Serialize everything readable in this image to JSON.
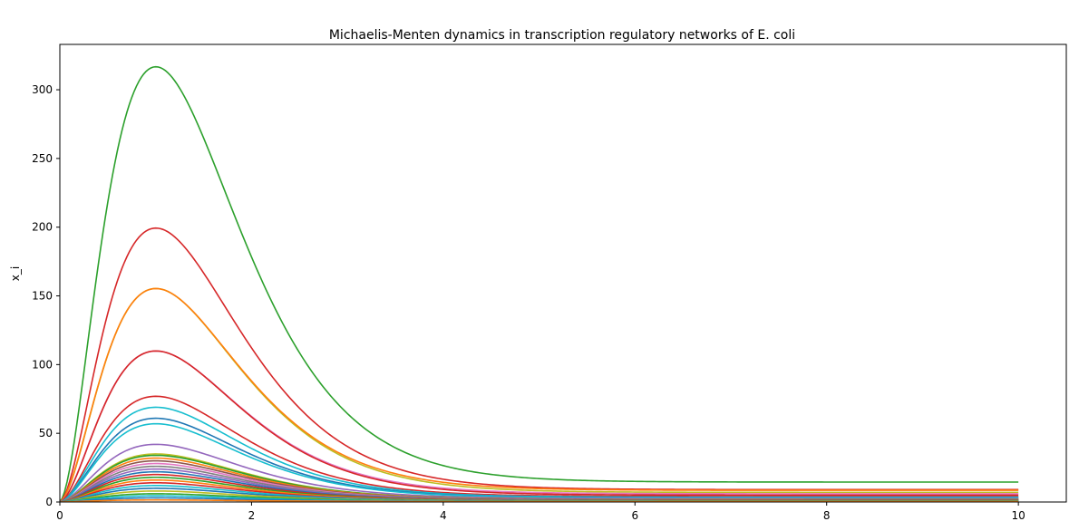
{
  "chart_data": {
    "type": "line",
    "title": "Michaelis-Menten dynamics in transcription regulatory networks of E. coli",
    "xlabel": "",
    "ylabel": "x_i",
    "xlim": [
      0,
      10.5
    ],
    "ylim": [
      0,
      333
    ],
    "xticks": [
      0,
      2,
      4,
      6,
      8,
      10
    ],
    "yticks": [
      0,
      50,
      100,
      150,
      200,
      250,
      300
    ],
    "grid": false,
    "legend": "none",
    "series": [
      {
        "peak": 317,
        "end": 14.5,
        "color": "#2ca02c"
      },
      {
        "peak": 199.5,
        "end": 9.0,
        "color": "#d62728"
      },
      {
        "peak": 155.5,
        "end": 7.0,
        "color": "#bcbd22"
      },
      {
        "peak": 155.5,
        "end": 8.5,
        "color": "#ff7f0e"
      },
      {
        "peak": 110,
        "end": 6.0,
        "color": "#e377c2"
      },
      {
        "peak": 110,
        "end": 5.0,
        "color": "#d62728"
      },
      {
        "peak": 77,
        "end": 4.0,
        "color": "#d62728"
      },
      {
        "peak": 69,
        "end": 3.5,
        "color": "#17becf"
      },
      {
        "peak": 61,
        "end": 3.2,
        "color": "#1f77b4"
      },
      {
        "peak": 57,
        "end": 3.0,
        "color": "#17becf"
      },
      {
        "peak": 42,
        "end": 2.5,
        "color": "#9467bd"
      },
      {
        "peak": 35,
        "end": 2.0,
        "color": "#bcbd22"
      },
      {
        "peak": 34,
        "end": 2.0,
        "color": "#2ca02c"
      },
      {
        "peak": 32,
        "end": 1.9,
        "color": "#ff7f0e"
      },
      {
        "peak": 30,
        "end": 1.8,
        "color": "#8c564b"
      },
      {
        "peak": 28,
        "end": 1.7,
        "color": "#e377c2"
      },
      {
        "peak": 26,
        "end": 1.6,
        "color": "#7f7f7f"
      },
      {
        "peak": 24,
        "end": 1.5,
        "color": "#9467bd"
      },
      {
        "peak": 22,
        "end": 1.4,
        "color": "#1f77b4"
      },
      {
        "peak": 20,
        "end": 1.3,
        "color": "#d62728"
      },
      {
        "peak": 18,
        "end": 1.2,
        "color": "#2ca02c"
      },
      {
        "peak": 16,
        "end": 1.1,
        "color": "#ff7f0e"
      },
      {
        "peak": 14,
        "end": 1.0,
        "color": "#d62728"
      },
      {
        "peak": 12,
        "end": 0.9,
        "color": "#17becf"
      },
      {
        "peak": 10,
        "end": 0.8,
        "color": "#1f77b4"
      },
      {
        "peak": 8,
        "end": 0.7,
        "color": "#bcbd22"
      },
      {
        "peak": 6,
        "end": 0.6,
        "color": "#2ca02c"
      },
      {
        "peak": 4.5,
        "end": 0.5,
        "color": "#17becf"
      },
      {
        "peak": 3,
        "end": 0.4,
        "color": "#1f77b4"
      },
      {
        "peak": 1.5,
        "end": 0.3,
        "color": "#ff7f0e"
      }
    ]
  }
}
